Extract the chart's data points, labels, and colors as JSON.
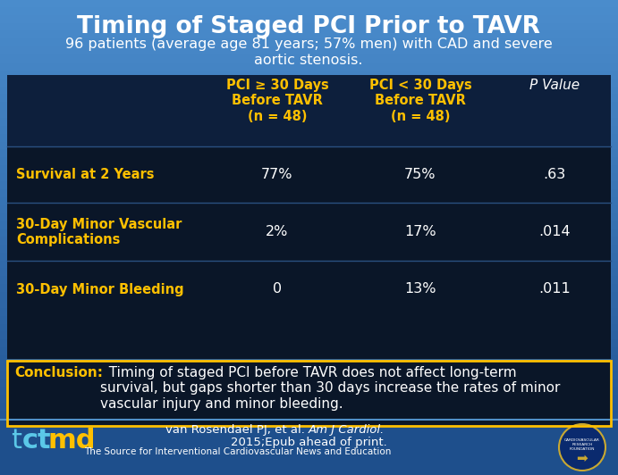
{
  "title": "Timing of Staged PCI Prior to TAVR",
  "subtitle_line1": "96 patients (average age 81 years; 57% men) with CAD and severe",
  "subtitle_line2": "aortic stenosis.",
  "col_headers": [
    "PCI ≥ 30 Days\nBefore TAVR\n(n = 48)",
    "PCI < 30 Days\nBefore TAVR\n(n = 48)",
    "P Value"
  ],
  "col_header_colors": [
    "#ffc000",
    "#ffc000",
    "#ffffff"
  ],
  "row_labels": [
    "Survival at 2 Years",
    "30-Day Minor Vascular\nComplications",
    "30-Day Minor Bleeding"
  ],
  "row_label_color": "#ffc000",
  "data": [
    [
      "77%",
      "75%",
      ".63"
    ],
    [
      "2%",
      "17%",
      ".014"
    ],
    [
      "0",
      "13%",
      ".011"
    ]
  ],
  "data_color": "#ffffff",
  "conclusion_label": "Conclusion:",
  "conclusion_label_color": "#ffc000",
  "conclusion_body": "  Timing of staged PCI before TAVR does not affect long-term\nsurvival, but gaps shorter than 30 days increase the rates of minor\nvascular injury and minor bleeding.",
  "conclusion_text_color": "#ffffff",
  "conclusion_bg_color": "#0a1628",
  "conclusion_border_color": "#ffc000",
  "table_bg_color": "#0a1628",
  "table_header_bg": "#0d1f3c",
  "bg_color_top": "#4a8ccc",
  "bg_color_bottom": "#1e5090",
  "citation_plain": "van Rosendael PJ, et al. ",
  "citation_italic": "Am J Cardiol.",
  "citation_line2": "2015;Epub ahead of print.",
  "footer_text": "The Source for Interventional Cardiovascular News and Education",
  "tct_color": "#5bc8e8",
  "md_color": "#ffc000",
  "divider_color": "#5090c8",
  "row_divider_color": "#2a5080"
}
